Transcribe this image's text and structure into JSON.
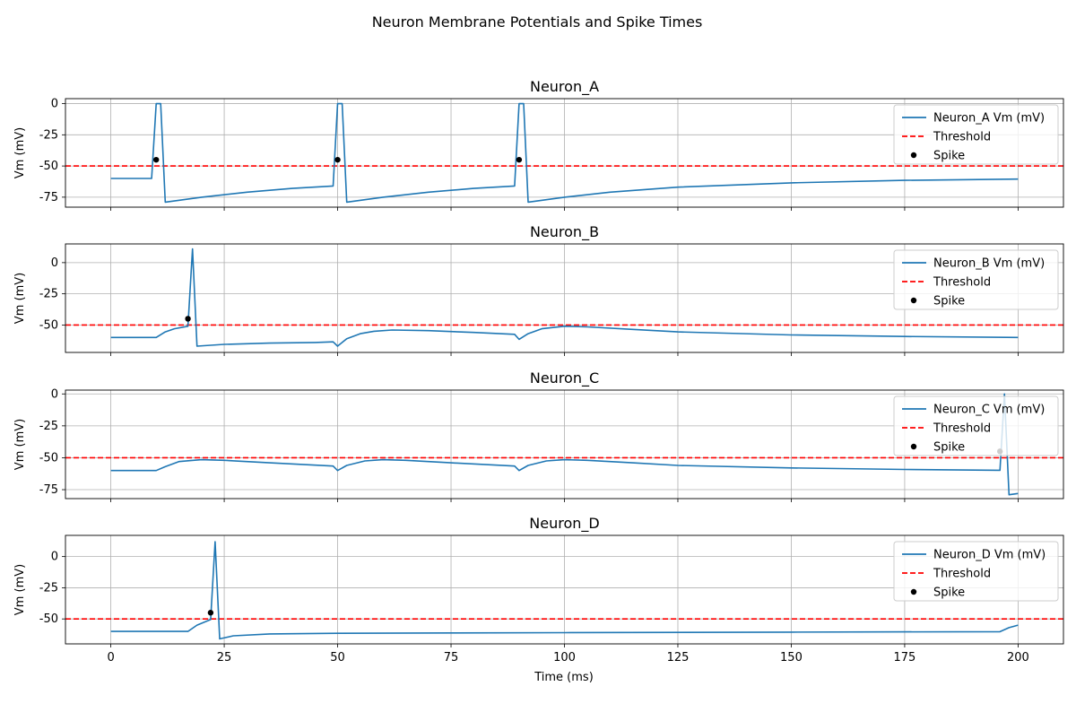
{
  "figure_title": "Neuron Membrane Potentials and Spike Times",
  "colors": {
    "trace": "#1f77b4",
    "threshold": "#ff0000",
    "spike": "#000000",
    "grid": "#b0b0b0"
  },
  "chart_data": {
    "type": "line",
    "title": "Neuron Membrane Potentials and Spike Times",
    "xlabel": "Time (ms)",
    "ylabel": "Vm (mV)",
    "xlim": [
      -10,
      210
    ],
    "xticks": [
      0,
      25,
      50,
      75,
      100,
      125,
      150,
      175,
      200
    ],
    "grid": true,
    "legend_placement": "upper right",
    "threshold": -50,
    "legend_threshold": "Threshold",
    "legend_spike": "Spike",
    "panels": [
      {
        "title": "Neuron_A",
        "legend_trace": "Neuron_A Vm (mV)",
        "ylim": [
          -83,
          4
        ],
        "yticks": [
          0,
          -25,
          -50,
          -75
        ],
        "spikes": [
          [
            10,
            -45
          ],
          [
            50,
            -45
          ],
          [
            90,
            -45
          ]
        ],
        "series": [
          [
            0,
            -60
          ],
          [
            9,
            -60
          ],
          [
            10,
            0
          ],
          [
            11,
            0
          ],
          [
            12,
            -79
          ],
          [
            20,
            -75
          ],
          [
            30,
            -71
          ],
          [
            40,
            -68
          ],
          [
            49,
            -66
          ],
          [
            50,
            0
          ],
          [
            51,
            0
          ],
          [
            52,
            -79
          ],
          [
            60,
            -75
          ],
          [
            70,
            -71
          ],
          [
            80,
            -68
          ],
          [
            89,
            -66
          ],
          [
            90,
            0
          ],
          [
            91,
            0
          ],
          [
            92,
            -79
          ],
          [
            100,
            -75
          ],
          [
            110,
            -71
          ],
          [
            125,
            -67
          ],
          [
            150,
            -63.5
          ],
          [
            175,
            -61.5
          ],
          [
            200,
            -60.5
          ]
        ]
      },
      {
        "title": "Neuron_B",
        "legend_trace": "Neuron_B Vm (mV)",
        "ylim": [
          -72,
          15
        ],
        "yticks": [
          0,
          -25,
          -50
        ],
        "spikes": [
          [
            17,
            -45
          ]
        ],
        "series": [
          [
            0,
            -60
          ],
          [
            10,
            -60
          ],
          [
            12,
            -55.5
          ],
          [
            14,
            -53
          ],
          [
            17,
            -51
          ],
          [
            18,
            11
          ],
          [
            19,
            -67
          ],
          [
            25,
            -65.5
          ],
          [
            35,
            -64.5
          ],
          [
            45,
            -64
          ],
          [
            49,
            -63.5
          ],
          [
            50,
            -67
          ],
          [
            52,
            -61
          ],
          [
            55,
            -57
          ],
          [
            58,
            -55
          ],
          [
            62,
            -54
          ],
          [
            70,
            -54.5
          ],
          [
            80,
            -56
          ],
          [
            89,
            -57.5
          ],
          [
            90,
            -61.5
          ],
          [
            92,
            -57
          ],
          [
            95,
            -53
          ],
          [
            100,
            -51
          ],
          [
            105,
            -51.5
          ],
          [
            115,
            -53.5
          ],
          [
            125,
            -55.5
          ],
          [
            150,
            -58
          ],
          [
            175,
            -59.2
          ],
          [
            200,
            -60
          ]
        ]
      },
      {
        "title": "Neuron_C",
        "legend_trace": "Neuron_C Vm (mV)",
        "ylim": [
          -82,
          3
        ],
        "yticks": [
          0,
          -25,
          -50,
          -75
        ],
        "spikes": [
          [
            196,
            -45
          ]
        ],
        "series": [
          [
            0,
            -60
          ],
          [
            10,
            -60
          ],
          [
            12,
            -57
          ],
          [
            15,
            -53
          ],
          [
            20,
            -51.5
          ],
          [
            25,
            -52
          ],
          [
            35,
            -54
          ],
          [
            49,
            -56.5
          ],
          [
            50,
            -60
          ],
          [
            52,
            -56
          ],
          [
            56,
            -52.5
          ],
          [
            60,
            -51.5
          ],
          [
            65,
            -52
          ],
          [
            75,
            -54
          ],
          [
            89,
            -56.5
          ],
          [
            90,
            -60
          ],
          [
            92,
            -56
          ],
          [
            96,
            -52.5
          ],
          [
            100,
            -51.5
          ],
          [
            105,
            -52
          ],
          [
            115,
            -54
          ],
          [
            125,
            -56
          ],
          [
            150,
            -58
          ],
          [
            175,
            -59.2
          ],
          [
            196,
            -59.8
          ],
          [
            197,
            0
          ],
          [
            198,
            -79
          ],
          [
            200,
            -78
          ]
        ]
      },
      {
        "title": "Neuron_D",
        "legend_trace": "Neuron_D Vm (mV)",
        "ylim": [
          -70,
          17
        ],
        "yticks": [
          0,
          -25,
          -50
        ],
        "spikes": [
          [
            22,
            -45
          ]
        ],
        "series": [
          [
            0,
            -60
          ],
          [
            17,
            -60
          ],
          [
            19,
            -55
          ],
          [
            22,
            -50.5
          ],
          [
            23,
            12
          ],
          [
            24,
            -66
          ],
          [
            27,
            -63.5
          ],
          [
            35,
            -62
          ],
          [
            50,
            -61.5
          ],
          [
            75,
            -61.2
          ],
          [
            100,
            -61
          ],
          [
            150,
            -60.6
          ],
          [
            196,
            -60.2
          ],
          [
            198,
            -57
          ],
          [
            200,
            -55
          ]
        ]
      }
    ]
  }
}
